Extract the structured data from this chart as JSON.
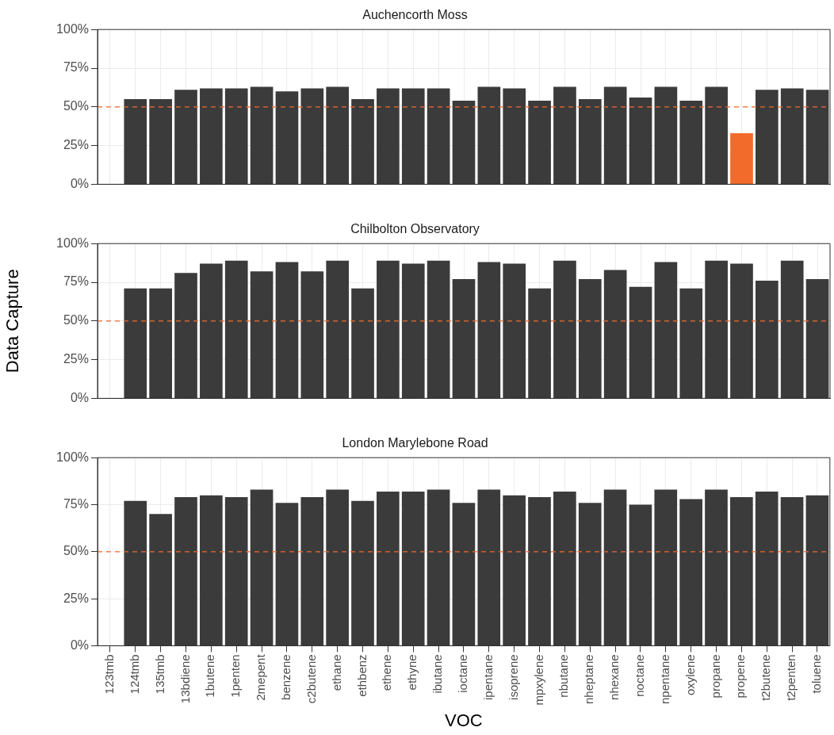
{
  "chart_data": [
    {
      "type": "bar",
      "title": "Auchencorth Moss",
      "categories": [
        null,
        null,
        null,
        null,
        null,
        null,
        null,
        null,
        null,
        null,
        null,
        null,
        null,
        null,
        null,
        null,
        null,
        null,
        null,
        null,
        null,
        null,
        null,
        null,
        null,
        null,
        null,
        null,
        null
      ],
      "values": [
        null,
        55,
        55,
        61,
        62,
        62,
        63,
        60,
        62,
        63,
        55,
        62,
        62,
        62,
        54,
        63,
        62,
        54,
        63,
        55,
        63,
        56,
        63,
        54,
        63,
        33,
        61,
        62,
        61
      ],
      "colors": [
        "#3b3b3b",
        "#3b3b3b",
        "#3b3b3b",
        "#3b3b3b",
        "#3b3b3b",
        "#3b3b3b",
        "#3b3b3b",
        "#3b3b3b",
        "#3b3b3b",
        "#3b3b3b",
        "#3b3b3b",
        "#3b3b3b",
        "#3b3b3b",
        "#3b3b3b",
        "#3b3b3b",
        "#3b3b3b",
        "#3b3b3b",
        "#3b3b3b",
        "#3b3b3b",
        "#3b3b3b",
        "#3b3b3b",
        "#3b3b3b",
        "#3b3b3b",
        "#3b3b3b",
        "#3b3b3b",
        "#f26b2a",
        "#3b3b3b",
        "#3b3b3b",
        "#3b3b3b"
      ],
      "ylim": [
        0,
        100
      ],
      "yticks": [
        {
          "value": 0,
          "label": "0%"
        },
        {
          "value": 25,
          "label": "25%"
        },
        {
          "value": 50,
          "label": "50%"
        },
        {
          "value": 75,
          "label": "75%"
        },
        {
          "value": 100,
          "label": "100%"
        }
      ],
      "ref_lines": [
        {
          "axis": "y",
          "value": 50,
          "color": "#f26b2a",
          "line_style": "dashed"
        }
      ],
      "grid": true,
      "legend": false,
      "tick_labels": "y"
    },
    {
      "type": "bar",
      "title": "Chilbolton Observatory",
      "ylabel": "Data Capture",
      "categories": [
        null,
        null,
        null,
        null,
        null,
        null,
        null,
        null,
        null,
        null,
        null,
        null,
        null,
        null,
        null,
        null,
        null,
        null,
        null,
        null,
        null,
        null,
        null,
        null,
        null,
        null,
        null,
        null,
        null
      ],
      "values": [
        null,
        71,
        71,
        81,
        87,
        89,
        82,
        88,
        82,
        89,
        71,
        89,
        87,
        89,
        77,
        88,
        87,
        71,
        89,
        77,
        83,
        72,
        88,
        71,
        89,
        87,
        76,
        89,
        77
      ],
      "color": "#3b3b3b",
      "ylim": [
        0,
        100
      ],
      "yticks": [
        {
          "value": 0,
          "label": "0%"
        },
        {
          "value": 25,
          "label": "25%"
        },
        {
          "value": 50,
          "label": "50%"
        },
        {
          "value": 75,
          "label": "75%"
        },
        {
          "value": 100,
          "label": "100%"
        }
      ],
      "ref_lines": [
        {
          "axis": "y",
          "value": 50,
          "color": "#f26b2a",
          "line_style": "dashed"
        }
      ],
      "grid": true,
      "legend": false,
      "tick_labels": "y"
    },
    {
      "type": "bar",
      "title": "London Marylebone Road",
      "xlabel": "VOC",
      "categories": [
        "123tmb",
        "124tmb",
        "135tmb",
        "13bdiene",
        "1butene",
        "1penten",
        "2mepent",
        "benzene",
        "c2butene",
        "ethane",
        "ethbenz",
        "ethene",
        "ethyne",
        "ibutane",
        "ioctane",
        "ipentane",
        "isoprene",
        "mpxylene",
        "nbutane",
        "nheptane",
        "nhexane",
        "noctane",
        "npentane",
        "oxylene",
        "propane",
        "propene",
        "t2butene",
        "t2penten",
        "toluene"
      ],
      "values": [
        null,
        77,
        70,
        79,
        80,
        79,
        83,
        76,
        79,
        83,
        77,
        82,
        82,
        83,
        76,
        83,
        80,
        79,
        82,
        76,
        83,
        75,
        83,
        78,
        83,
        79,
        82,
        79,
        80
      ],
      "color": "#3b3b3b",
      "ylim": [
        0,
        100
      ],
      "yticks": [
        {
          "value": 0,
          "label": "0%"
        },
        {
          "value": 25,
          "label": "25%"
        },
        {
          "value": 50,
          "label": "50%"
        },
        {
          "value": 75,
          "label": "75%"
        },
        {
          "value": 100,
          "label": "100%"
        }
      ],
      "ref_lines": [
        {
          "axis": "y",
          "value": 50,
          "color": "#f26b2a",
          "line_style": "dashed"
        }
      ],
      "grid": true,
      "legend": false
    }
  ]
}
